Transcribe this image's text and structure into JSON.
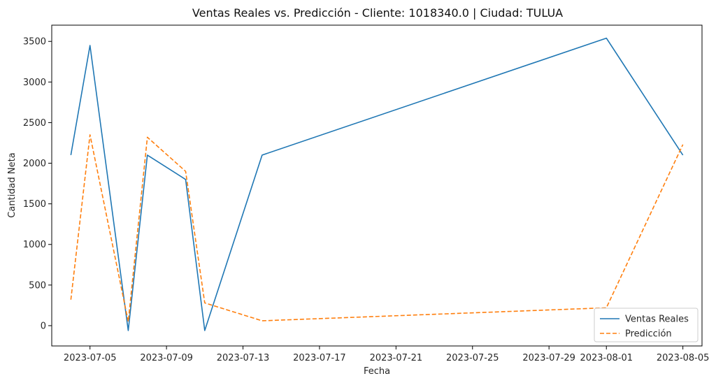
{
  "chart_data": {
    "type": "line",
    "title": "Ventas Reales vs. Predicción - Cliente: 1018340.0 | Ciudad: TULUA",
    "xlabel": "Fecha",
    "ylabel": "Cantidad Neta",
    "x_type": "date",
    "xlim": [
      "2023-07-03",
      "2023-08-06"
    ],
    "ylim": [
      -250,
      3700
    ],
    "x_ticks": [
      "2023-07-05",
      "2023-07-09",
      "2023-07-13",
      "2023-07-17",
      "2023-07-21",
      "2023-07-25",
      "2023-07-29",
      "2023-08-01",
      "2023-08-05"
    ],
    "y_ticks": [
      0,
      500,
      1000,
      1500,
      2000,
      2500,
      3000,
      3500
    ],
    "grid": false,
    "legend_position": "bottom-right",
    "series": [
      {
        "name": "Ventas Reales",
        "color": "#1f77b4",
        "style": "solid",
        "points": [
          {
            "x": "2023-07-04",
            "y": 2100
          },
          {
            "x": "2023-07-05",
            "y": 3450
          },
          {
            "x": "2023-07-07",
            "y": -60
          },
          {
            "x": "2023-07-08",
            "y": 2100
          },
          {
            "x": "2023-07-10",
            "y": 1800
          },
          {
            "x": "2023-07-11",
            "y": -60
          },
          {
            "x": "2023-07-14",
            "y": 2100
          },
          {
            "x": "2023-08-01",
            "y": 3540
          },
          {
            "x": "2023-08-05",
            "y": 2100
          }
        ]
      },
      {
        "name": "Predicción",
        "color": "#ff7f0e",
        "style": "dashed",
        "points": [
          {
            "x": "2023-07-04",
            "y": 320
          },
          {
            "x": "2023-07-05",
            "y": 2350
          },
          {
            "x": "2023-07-07",
            "y": 50
          },
          {
            "x": "2023-07-08",
            "y": 2320
          },
          {
            "x": "2023-07-10",
            "y": 1900
          },
          {
            "x": "2023-07-11",
            "y": 280
          },
          {
            "x": "2023-07-14",
            "y": 60
          },
          {
            "x": "2023-08-01",
            "y": 220
          },
          {
            "x": "2023-08-05",
            "y": 2230
          }
        ]
      }
    ]
  }
}
